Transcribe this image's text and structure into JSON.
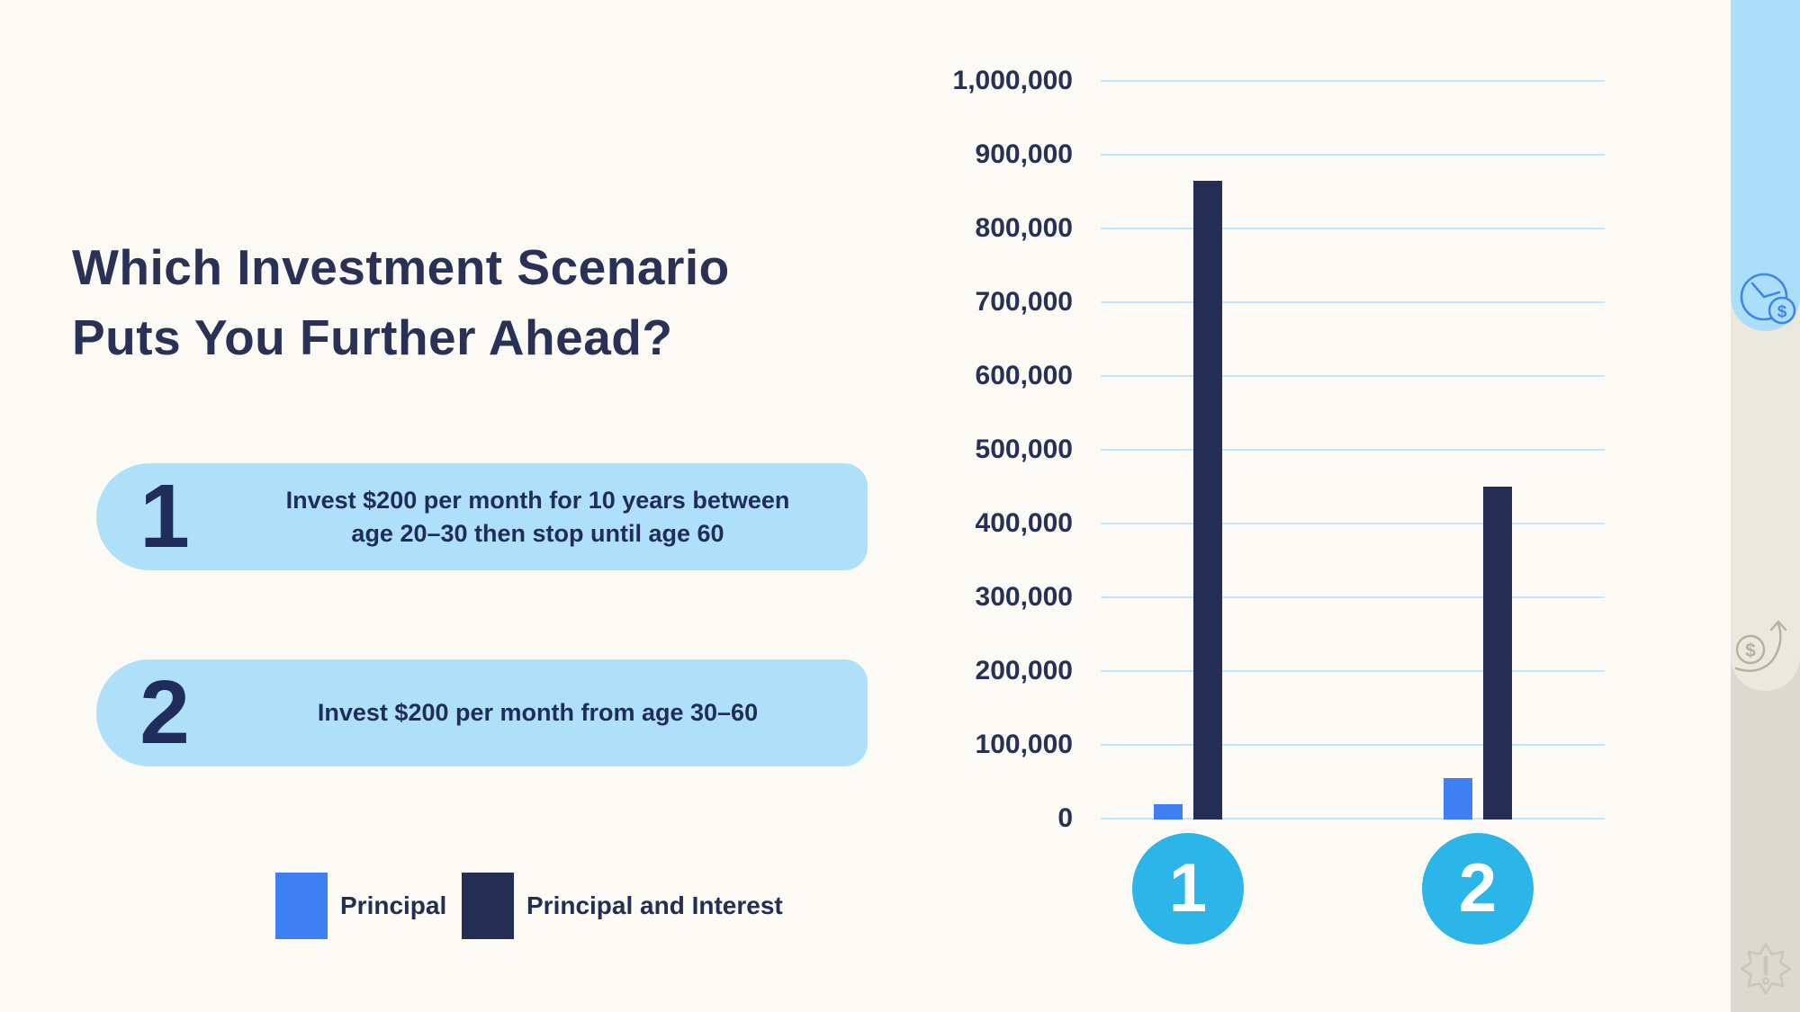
{
  "title": {
    "lines": [
      "Which Investment Scenario",
      "Puts You Further Ahead?"
    ],
    "color": "#2A3157"
  },
  "scenarios": [
    {
      "number": "1",
      "lines": [
        "Invest $200 per month for 10 years between",
        "age 20–30 then stop until age 60"
      ]
    },
    {
      "number": "2",
      "lines": [
        "Invest $200 per month from age 30–60"
      ]
    }
  ],
  "legend": {
    "items": [
      {
        "label": "Principal",
        "color": "#3E80F3"
      },
      {
        "label": "Principal and Interest",
        "color": "#242D53"
      }
    ]
  },
  "chart_data": {
    "type": "bar",
    "title": "",
    "xlabel": "",
    "ylabel": "",
    "categories": [
      "1",
      "2"
    ],
    "series": [
      {
        "name": "Principal",
        "color": "#3E80F3",
        "values": [
          20000,
          55000
        ]
      },
      {
        "name": "Principal and Interest",
        "color": "#242D53",
        "values": [
          865000,
          450000
        ]
      }
    ],
    "ylim": [
      0,
      1000000
    ],
    "ytick_interval": 100000,
    "ytick_labels_top_to_bottom": [
      "1,000,000",
      "900,000",
      "800,000",
      "700,000",
      "600,000",
      "500,000",
      "400,000",
      "300,000",
      "200,000",
      "100,000",
      "0"
    ],
    "grid": true,
    "gridline_color": "#C2E6FA",
    "axis_label_color": "#273056",
    "legend_position": "bottom-left, outside plot",
    "category_badge": {
      "background": "#2BB5E8",
      "text_color": "#FFFFFF"
    }
  },
  "colors": {
    "page_background": "#FCFAF4",
    "title_navy": "#2A3157",
    "pill_blue": "#AEE0F9",
    "bright_blue": "#3E80F3",
    "dark_navy": "#242D53",
    "badge_cyan": "#2BB5E8",
    "rail_blue": "#ABDFF9",
    "rail_beige": "#EBE8DD",
    "rail_gray": "#DCD9D0"
  },
  "side_rail": {
    "tabs": [
      {
        "id": "time-money-tab",
        "icon": "clock-dollar-icon",
        "color": "#ABDFF9"
      },
      {
        "id": "growth-tab",
        "icon": "coin-growth-icon",
        "color": "#EBE8DD"
      },
      {
        "id": "alert-tab",
        "icon": "alert-burst-icon",
        "color": "#DCD9D0"
      }
    ]
  }
}
